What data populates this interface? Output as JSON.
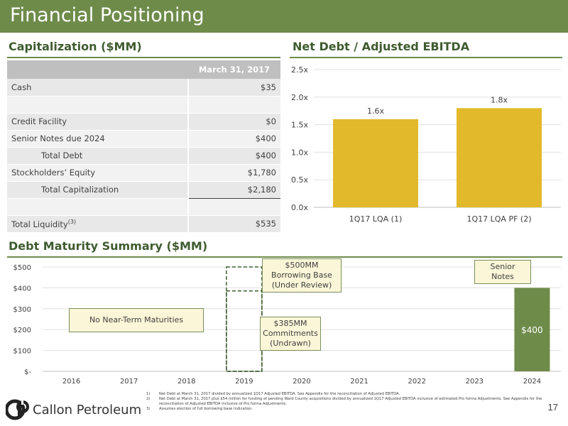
{
  "header": {
    "title": "Financial Positioning"
  },
  "capitalization": {
    "title": "Capitalization ($MM)",
    "column_header": "March 31, 2017",
    "rows": [
      {
        "label": "Cash",
        "value": "$35"
      },
      {
        "label": "",
        "value": ""
      },
      {
        "label": "Credit Facility",
        "value": "$0"
      },
      {
        "label": "Senior Notes due 2024",
        "value": "$400"
      },
      {
        "label": "Total Debt",
        "value": "$400"
      },
      {
        "label": "Stockholders’ Equity",
        "value": "$1,780"
      },
      {
        "label": "Total Capitalization",
        "value": "$2,180"
      },
      {
        "label": "",
        "value": ""
      },
      {
        "label": "Total Liquidity",
        "sup": "(3)",
        "value": "$535"
      }
    ]
  },
  "leverage": {
    "title": "Net Debt / Adjusted EBITDA"
  },
  "maturity": {
    "title": "Debt Maturity Summary ($MM)",
    "callouts": {
      "no_near_term": "No Near-Term Maturities",
      "borrowing_base_line1": "$500MM",
      "borrowing_base_line2": "Borrowing Base",
      "borrowing_base_line3": "(Under Review)",
      "commitments_line1": "$385MM",
      "commitments_line2": "Commitments",
      "commitments_line3": "(Undrawn)",
      "senior_notes_line1": "Senior",
      "senior_notes_line2": "Notes"
    }
  },
  "chart_data": [
    {
      "type": "bar",
      "title": "Net Debt / Adjusted EBITDA",
      "categories": [
        "1Q17 LQA (1)",
        "1Q17 LQA PF (2)"
      ],
      "values": [
        1.6,
        1.8
      ],
      "labels": [
        "1.6x",
        "1.8x"
      ],
      "ylim": [
        0,
        2.5
      ],
      "yticks": [
        "0.0x",
        "0.5x",
        "1.0x",
        "1.5x",
        "2.0x",
        "2.5x"
      ],
      "grid": true,
      "colors": {
        "bar": "#e1b92b"
      }
    },
    {
      "type": "bar",
      "title": "Debt Maturity Summary ($MM)",
      "categories": [
        "2016",
        "2017",
        "2018",
        "2019",
        "2020",
        "2021",
        "2022",
        "2023",
        "2024"
      ],
      "values": [
        0,
        0,
        0,
        0,
        0,
        0,
        0,
        0,
        400
      ],
      "labels": [
        "",
        "",
        "",
        "",
        "",
        "",
        "",
        "",
        "$400"
      ],
      "credit_facility": {
        "category": "2019",
        "borrowing_base": 500,
        "commitments": 385
      },
      "ylim": [
        0,
        500
      ],
      "yticks": [
        "$-",
        "$100",
        "$200",
        "$300",
        "$400",
        "$500"
      ],
      "grid": true,
      "colors": {
        "bar": "#6e8b4a"
      }
    }
  ],
  "footnotes": [
    {
      "num": "1)",
      "text": "Net Debt at March 31, 2017 divided by annualized 1Q17 Adjusted EBITDA. See Appendix for the reconciliation of Adjusted EBITDA."
    },
    {
      "num": "2)",
      "text": "Net Debt at March 31, 2017 plus $54 million for funding of pending Ward County acquisitions divided by annualized 1Q17 Adjusted EBITDA inclusive of estimated Pro forma Adjustments. See Appendix for the reconciliation of Adjusted EBITDA inclusive of Pro forma Adjustments."
    },
    {
      "num": "3)",
      "text": "Assumes election of full borrowing base indication."
    }
  ],
  "footer": {
    "company": "Callon Petroleum",
    "page": "17"
  }
}
